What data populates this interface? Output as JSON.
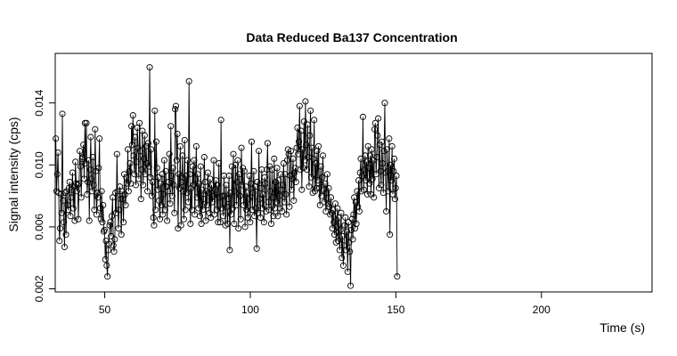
{
  "chart_data": {
    "type": "line",
    "title": "Data Reduced Ba137 Concentration",
    "xlabel": "Time (s)",
    "ylabel": "Signal intensity (cps)",
    "xlim": [
      33,
      238
    ],
    "ylim": [
      0.0018,
      0.0172
    ],
    "xticks": [
      50,
      100,
      150,
      200
    ],
    "yticks": [
      0.002,
      0.006,
      0.01,
      0.014
    ],
    "ytick_labels": [
      "0.002",
      "0.006",
      "0.010",
      "0.014"
    ],
    "grid": false,
    "legend": "none",
    "marker": "open-circle",
    "color": "#000000",
    "sampling_interval_s": 0.25,
    "series": [
      {
        "x_start": 33.2,
        "x_step": 0.25,
        "values": [
          0.0117,
          0.0083,
          0.0094,
          0.0108,
          0.0082,
          0.0051,
          0.0059,
          0.0081,
          0.0069,
          0.0133,
          0.0077,
          0.0063,
          0.0047,
          0.0082,
          0.0055,
          0.0083,
          0.0074,
          0.0071,
          0.0085,
          0.0089,
          0.0067,
          0.0079,
          0.0084,
          0.0095,
          0.0072,
          0.0086,
          0.0064,
          0.0102,
          0.0088,
          0.0083,
          0.0087,
          0.0065,
          0.0088,
          0.0109,
          0.0099,
          0.0079,
          0.0104,
          0.0105,
          0.0113,
          0.0091,
          0.0127,
          0.0101,
          0.0127,
          0.0081,
          0.0089,
          0.0103,
          0.0064,
          0.0097,
          0.0118,
          0.0091,
          0.0083,
          0.0105,
          0.0087,
          0.0071,
          0.0123,
          0.0096,
          0.0068,
          0.0082,
          0.0079,
          0.0098,
          0.0117,
          0.0072,
          0.0065,
          0.0083,
          0.0063,
          0.0074,
          0.0057,
          0.0058,
          0.0039,
          0.0051,
          0.0035,
          0.0028,
          0.0045,
          0.0049,
          0.0061,
          0.0063,
          0.0054,
          0.0067,
          0.0079,
          0.0048,
          0.0044,
          0.0052,
          0.0082,
          0.0069,
          0.0107,
          0.0083,
          0.0059,
          0.0071,
          0.0086,
          0.0078,
          0.0055,
          0.0083,
          0.0078,
          0.0063,
          0.0094,
          0.0081,
          0.0074,
          0.0092,
          0.0088,
          0.011,
          0.0083,
          0.0096,
          0.0101,
          0.0088,
          0.0125,
          0.0113,
          0.0132,
          0.0106,
          0.0094,
          0.0118,
          0.0087,
          0.0102,
          0.0124,
          0.0111,
          0.0091,
          0.0127,
          0.0109,
          0.0078,
          0.0097,
          0.0122,
          0.0087,
          0.0104,
          0.0119,
          0.0094,
          0.0112,
          0.0101,
          0.0083,
          0.0114,
          0.0099,
          0.0163,
          0.0092,
          0.011,
          0.008,
          0.0089,
          0.0066,
          0.0061,
          0.0135,
          0.0071,
          0.0115,
          0.0098,
          0.0084,
          0.0092,
          0.0077,
          0.0065,
          0.0088,
          0.0074,
          0.0094,
          0.0068,
          0.0081,
          0.0103,
          0.0071,
          0.0096,
          0.0086,
          0.0064,
          0.0083,
          0.0089,
          0.0107,
          0.0075,
          0.0125,
          0.0093,
          0.008,
          0.0098,
          0.0087,
          0.0069,
          0.0136,
          0.0138,
          0.0103,
          0.012,
          0.0059,
          0.0094,
          0.0085,
          0.0112,
          0.0061,
          0.0089,
          0.0106,
          0.0083,
          0.0065,
          0.0116,
          0.0071,
          0.0093,
          0.0082,
          0.0103,
          0.0076,
          0.0154,
          0.0094,
          0.0062,
          0.0085,
          0.0071,
          0.0099,
          0.0087,
          0.0103,
          0.0068,
          0.0091,
          0.0112,
          0.0079,
          0.0094,
          0.0072,
          0.0088,
          0.0067,
          0.0099,
          0.0062,
          0.0084,
          0.0071,
          0.0078,
          0.0105,
          0.0089,
          0.0064,
          0.0083,
          0.0074,
          0.0095,
          0.0082,
          0.0069,
          0.0091,
          0.0066,
          0.0087,
          0.0076,
          0.008,
          0.0103,
          0.0068,
          0.0084,
          0.009,
          0.0071,
          0.0087,
          0.0063,
          0.0101,
          0.0079,
          0.0063,
          0.0129,
          0.0072,
          0.008,
          0.0067,
          0.0093,
          0.008,
          0.0061,
          0.0087,
          0.0073,
          0.0062,
          0.0078,
          0.0093,
          0.0045,
          0.0082,
          0.0068,
          0.0099,
          0.0072,
          0.0107,
          0.0062,
          0.0083,
          0.01,
          0.0074,
          0.0089,
          0.0103,
          0.0059,
          0.0094,
          0.008,
          0.0065,
          0.0111,
          0.0087,
          0.0098,
          0.0074,
          0.0096,
          0.006,
          0.0086,
          0.0071,
          0.0082,
          0.0066,
          0.0078,
          0.0093,
          0.0063,
          0.0088,
          0.0115,
          0.0071,
          0.0082,
          0.0096,
          0.0067,
          0.0086,
          0.0072,
          0.0046,
          0.0089,
          0.0069,
          0.0109,
          0.0078,
          0.0066,
          0.0085,
          0.0097,
          0.0072,
          0.0081,
          0.0063,
          0.0092,
          0.0088,
          0.007,
          0.0097,
          0.0114,
          0.0076,
          0.0071,
          0.0099,
          0.0083,
          0.0062,
          0.0097,
          0.0079,
          0.0067,
          0.0104,
          0.0072,
          0.0089,
          0.0076,
          0.0098,
          0.0067,
          0.009,
          0.008,
          0.0072,
          0.0094,
          0.0084,
          0.007,
          0.0087,
          0.0101,
          0.0076,
          0.0094,
          0.0081,
          0.0068,
          0.0103,
          0.011,
          0.0107,
          0.0073,
          0.0093,
          0.0109,
          0.0084,
          0.0091,
          0.0104,
          0.0077,
          0.0095,
          0.0098,
          0.0089,
          0.0111,
          0.0124,
          0.0107,
          0.0115,
          0.0138,
          0.0097,
          0.0122,
          0.0084,
          0.011,
          0.0098,
          0.0128,
          0.0103,
          0.0141,
          0.0113,
          0.0097,
          0.0126,
          0.0105,
          0.0086,
          0.0119,
          0.0135,
          0.0092,
          0.0111,
          0.0082,
          0.0104,
          0.0129,
          0.0083,
          0.0101,
          0.0085,
          0.0109,
          0.009,
          0.0112,
          0.0085,
          0.0074,
          0.0099,
          0.008,
          0.0092,
          0.0106,
          0.0084,
          0.0076,
          0.0088,
          0.007,
          0.0082,
          0.0094,
          0.0075,
          0.0085,
          0.0073,
          0.0068,
          0.0079,
          0.0069,
          0.0059,
          0.0071,
          0.0063,
          0.0055,
          0.0075,
          0.005,
          0.006,
          0.0072,
          0.0051,
          0.0066,
          0.0045,
          0.0058,
          0.0069,
          0.004,
          0.0054,
          0.0035,
          0.0048,
          0.0061,
          0.0066,
          0.0045,
          0.0057,
          0.0031,
          0.0063,
          0.005,
          0.0044,
          0.0022,
          0.0058,
          0.0065,
          0.0052,
          0.0068,
          0.0079,
          0.0059,
          0.0076,
          0.0062,
          0.0083,
          0.0073,
          0.009,
          0.007,
          0.0095,
          0.0104,
          0.0083,
          0.0093,
          0.0131,
          0.0084,
          0.0097,
          0.0106,
          0.009,
          0.0102,
          0.0081,
          0.0112,
          0.0098,
          0.0088,
          0.0106,
          0.0081,
          0.011,
          0.0091,
          0.0103,
          0.0079,
          0.0123,
          0.0127,
          0.0094,
          0.0105,
          0.0119,
          0.013,
          0.0085,
          0.0113,
          0.0096,
          0.0087,
          0.0115,
          0.0101,
          0.0082,
          0.0109,
          0.014,
          0.0095,
          0.007,
          0.011,
          0.0096,
          0.0083,
          0.0117,
          0.0055,
          0.01,
          0.009,
          0.0112,
          0.0081,
          0.0096,
          0.0104,
          0.0078,
          0.0085,
          0.0093,
          0.0028
        ]
      }
    ]
  }
}
